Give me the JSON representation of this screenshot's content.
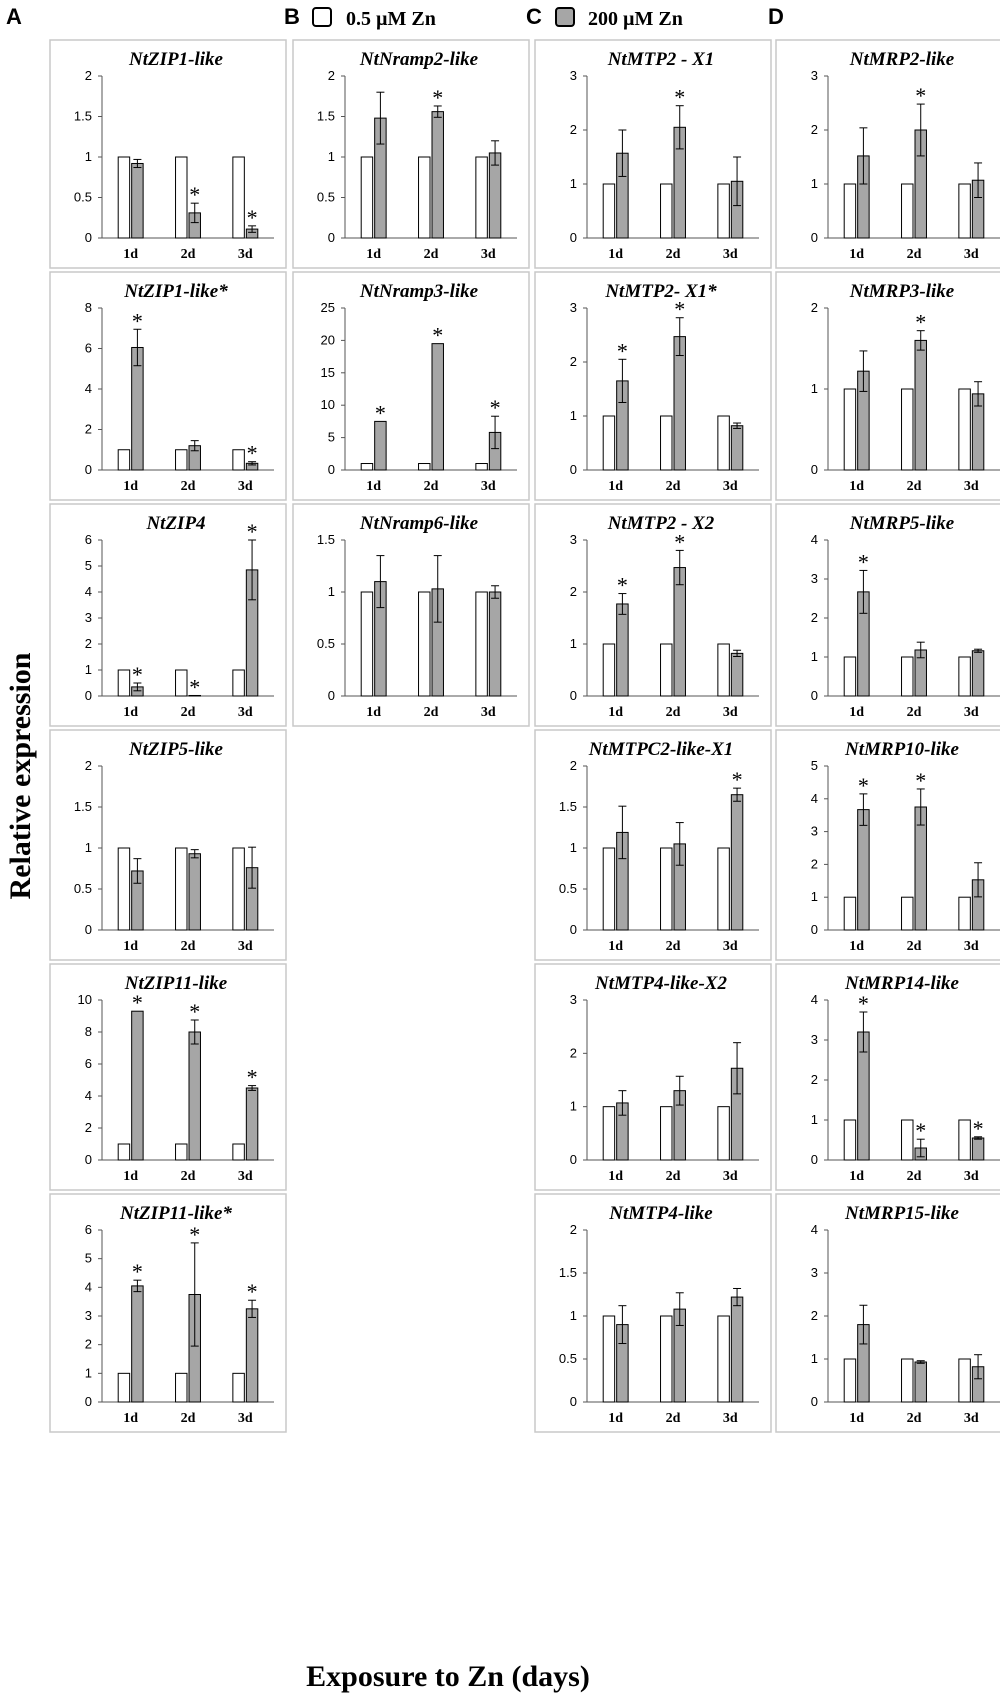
{
  "figure": {
    "column_letters": [
      "A",
      "B",
      "C",
      "D"
    ],
    "legend": [
      {
        "label": "0.5 µM Zn",
        "color": "#ffffff"
      },
      {
        "label": "200 µM Zn",
        "color": "#a6a6a6"
      }
    ],
    "ylabel": "Relative expression",
    "xlabel": "Exposure to Zn (days)"
  },
  "chart_data": [
    {
      "type": "bar",
      "title": "NtZIP1-like",
      "categories": [
        "1d",
        "2d",
        "3d"
      ],
      "ylim": [
        0,
        2
      ],
      "yticks": [
        "0",
        "0.5",
        "1",
        "1.5",
        "2"
      ],
      "series": [
        {
          "name": "0.5 µM Zn",
          "values": [
            1,
            1,
            1
          ]
        },
        {
          "name": "200 µM Zn",
          "values": [
            0.92,
            0.31,
            0.11
          ],
          "errors": [
            0.05,
            0.12,
            0.04
          ],
          "significant": [
            false,
            true,
            true
          ]
        }
      ]
    },
    {
      "type": "bar",
      "title": "NtZIP1-like*",
      "categories": [
        "1d",
        "2d",
        "3d"
      ],
      "ylim": [
        0,
        8
      ],
      "yticks": [
        "0",
        "2",
        "4",
        "6",
        "8"
      ],
      "series": [
        {
          "name": "0.5 µM Zn",
          "values": [
            1,
            1,
            1
          ]
        },
        {
          "name": "200 µM Zn",
          "values": [
            6.05,
            1.2,
            0.33
          ],
          "errors": [
            0.9,
            0.25,
            0.08
          ],
          "significant": [
            true,
            false,
            true
          ]
        }
      ]
    },
    {
      "type": "bar",
      "title": "NtZIP4",
      "categories": [
        "1d",
        "2d",
        "3d"
      ],
      "ylim": [
        0,
        6
      ],
      "yticks": [
        "0",
        "1",
        "2",
        "3",
        "4",
        "5",
        "6"
      ],
      "series": [
        {
          "name": "0.5 µM Zn",
          "values": [
            1,
            1,
            1
          ]
        },
        {
          "name": "200 µM Zn",
          "values": [
            0.35,
            0.02,
            4.85
          ],
          "errors": [
            0.15,
            0,
            1.15
          ],
          "significant": [
            true,
            true,
            true
          ]
        }
      ]
    },
    {
      "type": "bar",
      "title": "NtZIP5-like",
      "categories": [
        "1d",
        "2d",
        "3d"
      ],
      "ylim": [
        0,
        2
      ],
      "yticks": [
        "0",
        "0.5",
        "1",
        "1.5",
        "2"
      ],
      "series": [
        {
          "name": "0.5 µM Zn",
          "values": [
            1,
            1,
            1
          ]
        },
        {
          "name": "200 µM Zn",
          "values": [
            0.72,
            0.93,
            0.76
          ],
          "errors": [
            0.15,
            0.05,
            0.25
          ],
          "significant": [
            false,
            false,
            false
          ]
        }
      ]
    },
    {
      "type": "bar",
      "title": "NtZIP11-like",
      "categories": [
        "1d",
        "2d",
        "3d"
      ],
      "ylim": [
        0,
        10
      ],
      "yticks": [
        "0",
        "2",
        "4",
        "6",
        "8",
        "10"
      ],
      "series": [
        {
          "name": "0.5 µM Zn",
          "values": [
            1,
            1,
            1
          ]
        },
        {
          "name": "200 µM Zn",
          "values": [
            9.3,
            8.0,
            4.5
          ],
          "errors": [
            0,
            0.75,
            0.15
          ],
          "significant": [
            true,
            true,
            true
          ]
        }
      ]
    },
    {
      "type": "bar",
      "title": "NtZIP11-like*",
      "categories": [
        "1d",
        "2d",
        "3d"
      ],
      "ylim": [
        0,
        6
      ],
      "yticks": [
        "0",
        "1",
        "2",
        "3",
        "4",
        "5",
        "6"
      ],
      "series": [
        {
          "name": "0.5 µM Zn",
          "values": [
            1,
            1,
            1
          ]
        },
        {
          "name": "200 µM Zn",
          "values": [
            4.05,
            3.75,
            3.25
          ],
          "errors": [
            0.2,
            1.8,
            0.3
          ],
          "significant": [
            true,
            true,
            true
          ]
        }
      ]
    },
    {
      "type": "bar",
      "title": "NtNramp2-like",
      "categories": [
        "1d",
        "2d",
        "3d"
      ],
      "ylim": [
        0,
        2
      ],
      "yticks": [
        "0",
        "0.5",
        "1",
        "1.5",
        "2"
      ],
      "series": [
        {
          "name": "0.5 µM Zn",
          "values": [
            1,
            1,
            1
          ]
        },
        {
          "name": "200 µM Zn",
          "values": [
            1.48,
            1.56,
            1.05
          ],
          "errors": [
            0.32,
            0.07,
            0.15
          ],
          "significant": [
            false,
            true,
            false
          ]
        }
      ]
    },
    {
      "type": "bar",
      "title": "NtNramp3-like",
      "categories": [
        "1d",
        "2d",
        "3d"
      ],
      "ylim": [
        0,
        25
      ],
      "yticks": [
        "0",
        "5",
        "10",
        "15",
        "20",
        "25"
      ],
      "series": [
        {
          "name": "0.5 µM Zn",
          "values": [
            1,
            1,
            1
          ]
        },
        {
          "name": "200 µM Zn",
          "values": [
            7.5,
            19.5,
            5.8
          ],
          "errors": [
            0,
            0,
            2.5
          ],
          "significant": [
            true,
            true,
            true
          ]
        }
      ]
    },
    {
      "type": "bar",
      "title": "NtNramp6-like",
      "categories": [
        "1d",
        "2d",
        "3d"
      ],
      "ylim": [
        0,
        1.5
      ],
      "yticks": [
        "0",
        "0.5",
        "1",
        "1.5"
      ],
      "series": [
        {
          "name": "0.5 µM Zn",
          "values": [
            1,
            1,
            1
          ]
        },
        {
          "name": "200 µM Zn",
          "values": [
            1.1,
            1.03,
            1.0
          ],
          "errors": [
            0.25,
            0.32,
            0.06
          ],
          "significant": [
            false,
            false,
            false
          ]
        }
      ]
    },
    {
      "type": "bar",
      "title": "NtMTP2 - X1",
      "categories": [
        "1d",
        "2d",
        "3d"
      ],
      "ylim": [
        0,
        3
      ],
      "yticks": [
        "0",
        "1",
        "2",
        "3"
      ],
      "series": [
        {
          "name": "0.5 µM Zn",
          "values": [
            1,
            1,
            1
          ]
        },
        {
          "name": "200 µM Zn",
          "values": [
            1.57,
            2.05,
            1.05
          ],
          "errors": [
            0.43,
            0.4,
            0.45
          ],
          "significant": [
            false,
            true,
            false
          ]
        }
      ]
    },
    {
      "type": "bar",
      "title": "NtMTP2- X1*",
      "categories": [
        "1d",
        "2d",
        "3d"
      ],
      "ylim": [
        0,
        3
      ],
      "yticks": [
        "0",
        "1",
        "2",
        "3"
      ],
      "series": [
        {
          "name": "0.5 µM Zn",
          "values": [
            1,
            1,
            1
          ]
        },
        {
          "name": "200 µM Zn",
          "values": [
            1.65,
            2.47,
            0.82
          ],
          "errors": [
            0.4,
            0.35,
            0.05
          ],
          "significant": [
            true,
            true,
            false
          ]
        }
      ]
    },
    {
      "type": "bar",
      "title": "NtMTP2 - X2",
      "categories": [
        "1d",
        "2d",
        "3d"
      ],
      "ylim": [
        0,
        3
      ],
      "yticks": [
        "0",
        "1",
        "2",
        "3"
      ],
      "series": [
        {
          "name": "0.5 µM Zn",
          "values": [
            1,
            1,
            1
          ]
        },
        {
          "name": "200 µM Zn",
          "values": [
            1.77,
            2.47,
            0.82
          ],
          "errors": [
            0.2,
            0.33,
            0.06
          ],
          "significant": [
            true,
            true,
            false
          ]
        }
      ]
    },
    {
      "type": "bar",
      "title": "NtMTPC2-like-X1",
      "categories": [
        "1d",
        "2d",
        "3d"
      ],
      "ylim": [
        0,
        2
      ],
      "yticks": [
        "0",
        "0.5",
        "1",
        "1.5",
        "2"
      ],
      "series": [
        {
          "name": "0.5 µM Zn",
          "values": [
            1,
            1,
            1
          ]
        },
        {
          "name": "200 µM Zn",
          "values": [
            1.19,
            1.05,
            1.65
          ],
          "errors": [
            0.32,
            0.26,
            0.08
          ],
          "significant": [
            false,
            false,
            true
          ]
        }
      ]
    },
    {
      "type": "bar",
      "title": "NtMTP4-like-X2",
      "categories": [
        "1d",
        "2d",
        "3d"
      ],
      "ylim": [
        0,
        3
      ],
      "yticks": [
        "0",
        "1",
        "2",
        "3"
      ],
      "series": [
        {
          "name": "0.5 µM Zn",
          "values": [
            1,
            1,
            1
          ]
        },
        {
          "name": "200 µM Zn",
          "values": [
            1.07,
            1.3,
            1.72
          ],
          "errors": [
            0.23,
            0.27,
            0.48
          ],
          "significant": [
            false,
            false,
            false
          ]
        }
      ]
    },
    {
      "type": "bar",
      "title": "NtMTP4-like",
      "categories": [
        "1d",
        "2d",
        "3d"
      ],
      "ylim": [
        0,
        2
      ],
      "yticks": [
        "0",
        "0.5",
        "1",
        "1.5",
        "2"
      ],
      "series": [
        {
          "name": "0.5 µM Zn",
          "values": [
            1,
            1,
            1
          ]
        },
        {
          "name": "200 µM Zn",
          "values": [
            0.9,
            1.08,
            1.22
          ],
          "errors": [
            0.22,
            0.19,
            0.1
          ],
          "significant": [
            false,
            false,
            false
          ]
        }
      ]
    },
    {
      "type": "bar",
      "title": "NtMRP2-like",
      "categories": [
        "1d",
        "2d",
        "3d"
      ],
      "ylim": [
        0,
        3
      ],
      "yticks": [
        "0",
        "1",
        "2",
        "3"
      ],
      "series": [
        {
          "name": "0.5 µM Zn",
          "values": [
            1,
            1,
            1
          ]
        },
        {
          "name": "200 µM Zn",
          "values": [
            1.52,
            2.0,
            1.07
          ],
          "errors": [
            0.52,
            0.48,
            0.32
          ],
          "significant": [
            false,
            true,
            false
          ]
        }
      ]
    },
    {
      "type": "bar",
      "title": "NtMRP3-like",
      "categories": [
        "1d",
        "2d",
        "3d"
      ],
      "ylim": [
        0,
        2
      ],
      "yticks": [
        "0",
        "1",
        "2"
      ],
      "series": [
        {
          "name": "0.5 µM Zn",
          "values": [
            1,
            1,
            1
          ]
        },
        {
          "name": "200 µM Zn",
          "values": [
            1.22,
            1.6,
            0.94
          ],
          "errors": [
            0.25,
            0.12,
            0.15
          ],
          "significant": [
            false,
            true,
            false
          ]
        }
      ]
    },
    {
      "type": "bar",
      "title": "NtMRP5-like",
      "categories": [
        "1d",
        "2d",
        "3d"
      ],
      "ylim": [
        0,
        4
      ],
      "yticks": [
        "0",
        "1",
        "2",
        "3",
        "4"
      ],
      "series": [
        {
          "name": "0.5 µM Zn",
          "values": [
            1,
            1,
            1
          ]
        },
        {
          "name": "200 µM Zn",
          "values": [
            2.67,
            1.18,
            1.16
          ],
          "errors": [
            0.55,
            0.2,
            0.04
          ],
          "significant": [
            true,
            false,
            false
          ]
        }
      ]
    },
    {
      "type": "bar",
      "title": "NtMRP10-like",
      "categories": [
        "1d",
        "2d",
        "3d"
      ],
      "ylim": [
        0,
        5
      ],
      "yticks": [
        "0",
        "1",
        "2",
        "3",
        "4",
        "5"
      ],
      "series": [
        {
          "name": "0.5 µM Zn",
          "values": [
            1,
            1,
            1
          ]
        },
        {
          "name": "200 µM Zn",
          "values": [
            3.67,
            3.75,
            1.53
          ],
          "errors": [
            0.48,
            0.55,
            0.52
          ],
          "significant": [
            true,
            true,
            false
          ]
        }
      ]
    },
    {
      "type": "bar",
      "title": "NtMRP14-like",
      "categories": [
        "1d",
        "2d",
        "3d"
      ],
      "ylim": [
        0,
        4
      ],
      "yticks": [
        "0",
        "1",
        "2",
        "3",
        "4"
      ],
      "series": [
        {
          "name": "0.5 µM Zn",
          "values": [
            1,
            1,
            1
          ]
        },
        {
          "name": "200 µM Zn",
          "values": [
            3.2,
            0.3,
            0.55
          ],
          "errors": [
            0.5,
            0.22,
            0.03
          ],
          "significant": [
            true,
            true,
            true
          ]
        }
      ]
    },
    {
      "type": "bar",
      "title": "NtMRP15-like",
      "categories": [
        "1d",
        "2d",
        "3d"
      ],
      "ylim": [
        0,
        4
      ],
      "yticks": [
        "0",
        "1",
        "2",
        "3",
        "4"
      ],
      "series": [
        {
          "name": "0.5 µM Zn",
          "values": [
            1,
            1,
            1
          ]
        },
        {
          "name": "200 µM Zn",
          "values": [
            1.8,
            0.93,
            0.82
          ],
          "errors": [
            0.45,
            0.03,
            0.28
          ],
          "significant": [
            false,
            false,
            false
          ]
        }
      ]
    }
  ]
}
